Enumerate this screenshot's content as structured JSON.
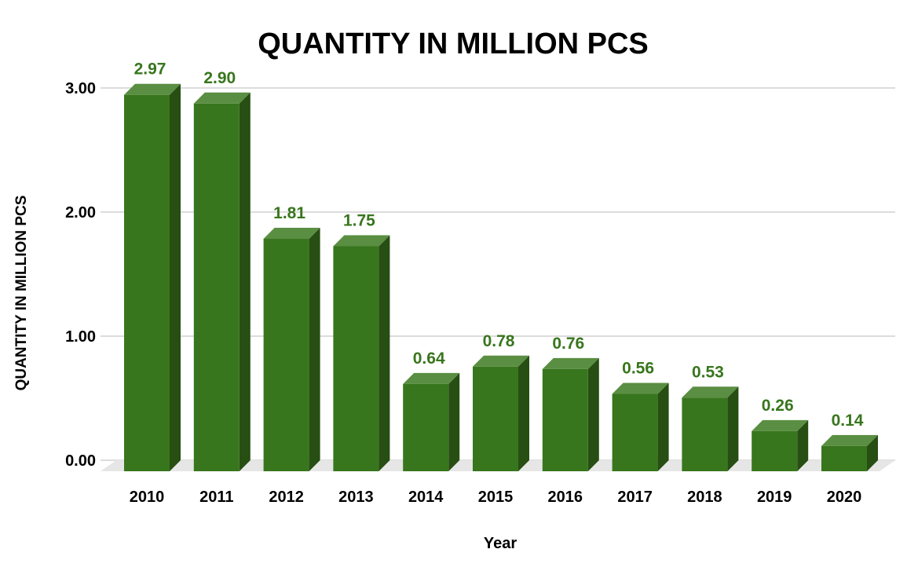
{
  "chart_data": {
    "type": "bar",
    "title": "QUANTITY IN MILLION PCS",
    "xlabel": "Year",
    "ylabel": "QUANTITY IN MILLION PCS",
    "categories": [
      "2010",
      "2011",
      "2012",
      "2013",
      "2014",
      "2015",
      "2016",
      "2017",
      "2018",
      "2019",
      "2020"
    ],
    "values": [
      2.97,
      2.9,
      1.81,
      1.75,
      0.64,
      0.78,
      0.76,
      0.56,
      0.53,
      0.26,
      0.14
    ],
    "value_labels": [
      "2.97",
      "2.90",
      "1.81",
      "1.75",
      "0.64",
      "0.78",
      "0.76",
      "0.56",
      "0.53",
      "0.26",
      "0.14"
    ],
    "yticks": [
      0,
      1,
      2,
      3
    ],
    "ytick_labels": [
      "0.00",
      "1.00",
      "2.00",
      "3.00"
    ],
    "ylim": [
      0,
      3
    ],
    "grid": true,
    "legend": "none",
    "style": "3d-column",
    "colors": {
      "bar_front": "#38761d",
      "bar_top": "#5a8e42",
      "bar_side": "#274e13",
      "data_label": "#38761d",
      "grid": "#c8c8c8",
      "floor": "#e6e6e6"
    }
  }
}
